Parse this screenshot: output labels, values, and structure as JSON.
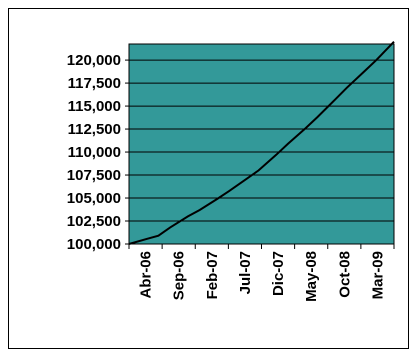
{
  "chart_data": {
    "type": "line",
    "title": "",
    "xlabel": "",
    "ylabel": "",
    "ylim": [
      100000,
      121750
    ],
    "y_ticks": [
      100000,
      102500,
      105000,
      107500,
      110000,
      112500,
      115000,
      117500,
      120000
    ],
    "y_tick_labels": [
      "100,000",
      "102,500",
      "105,000",
      "107,500",
      "110,000",
      "112,500",
      "115,000",
      "117,500",
      "120,000"
    ],
    "x_tick_labels": [
      "Abr-06",
      "Sep-06",
      "Feb-07",
      "Jul-07",
      "Dic-07",
      "May-08",
      "Oct-08",
      "Mar-09"
    ],
    "grid": true,
    "legend": "none",
    "plot_background": "#339999",
    "line_color": "#000000",
    "series": [
      {
        "x": [
          0,
          3,
          5,
          7,
          10,
          12,
          15,
          17,
          20,
          22,
          25,
          27,
          30,
          32,
          35,
          37,
          40,
          42,
          45
        ],
        "values": [
          100000,
          100550,
          100900,
          101800,
          103000,
          103700,
          104900,
          105750,
          107100,
          108000,
          109700,
          110900,
          112600,
          113800,
          115700,
          117000,
          118800,
          120000,
          122000
        ]
      }
    ]
  }
}
